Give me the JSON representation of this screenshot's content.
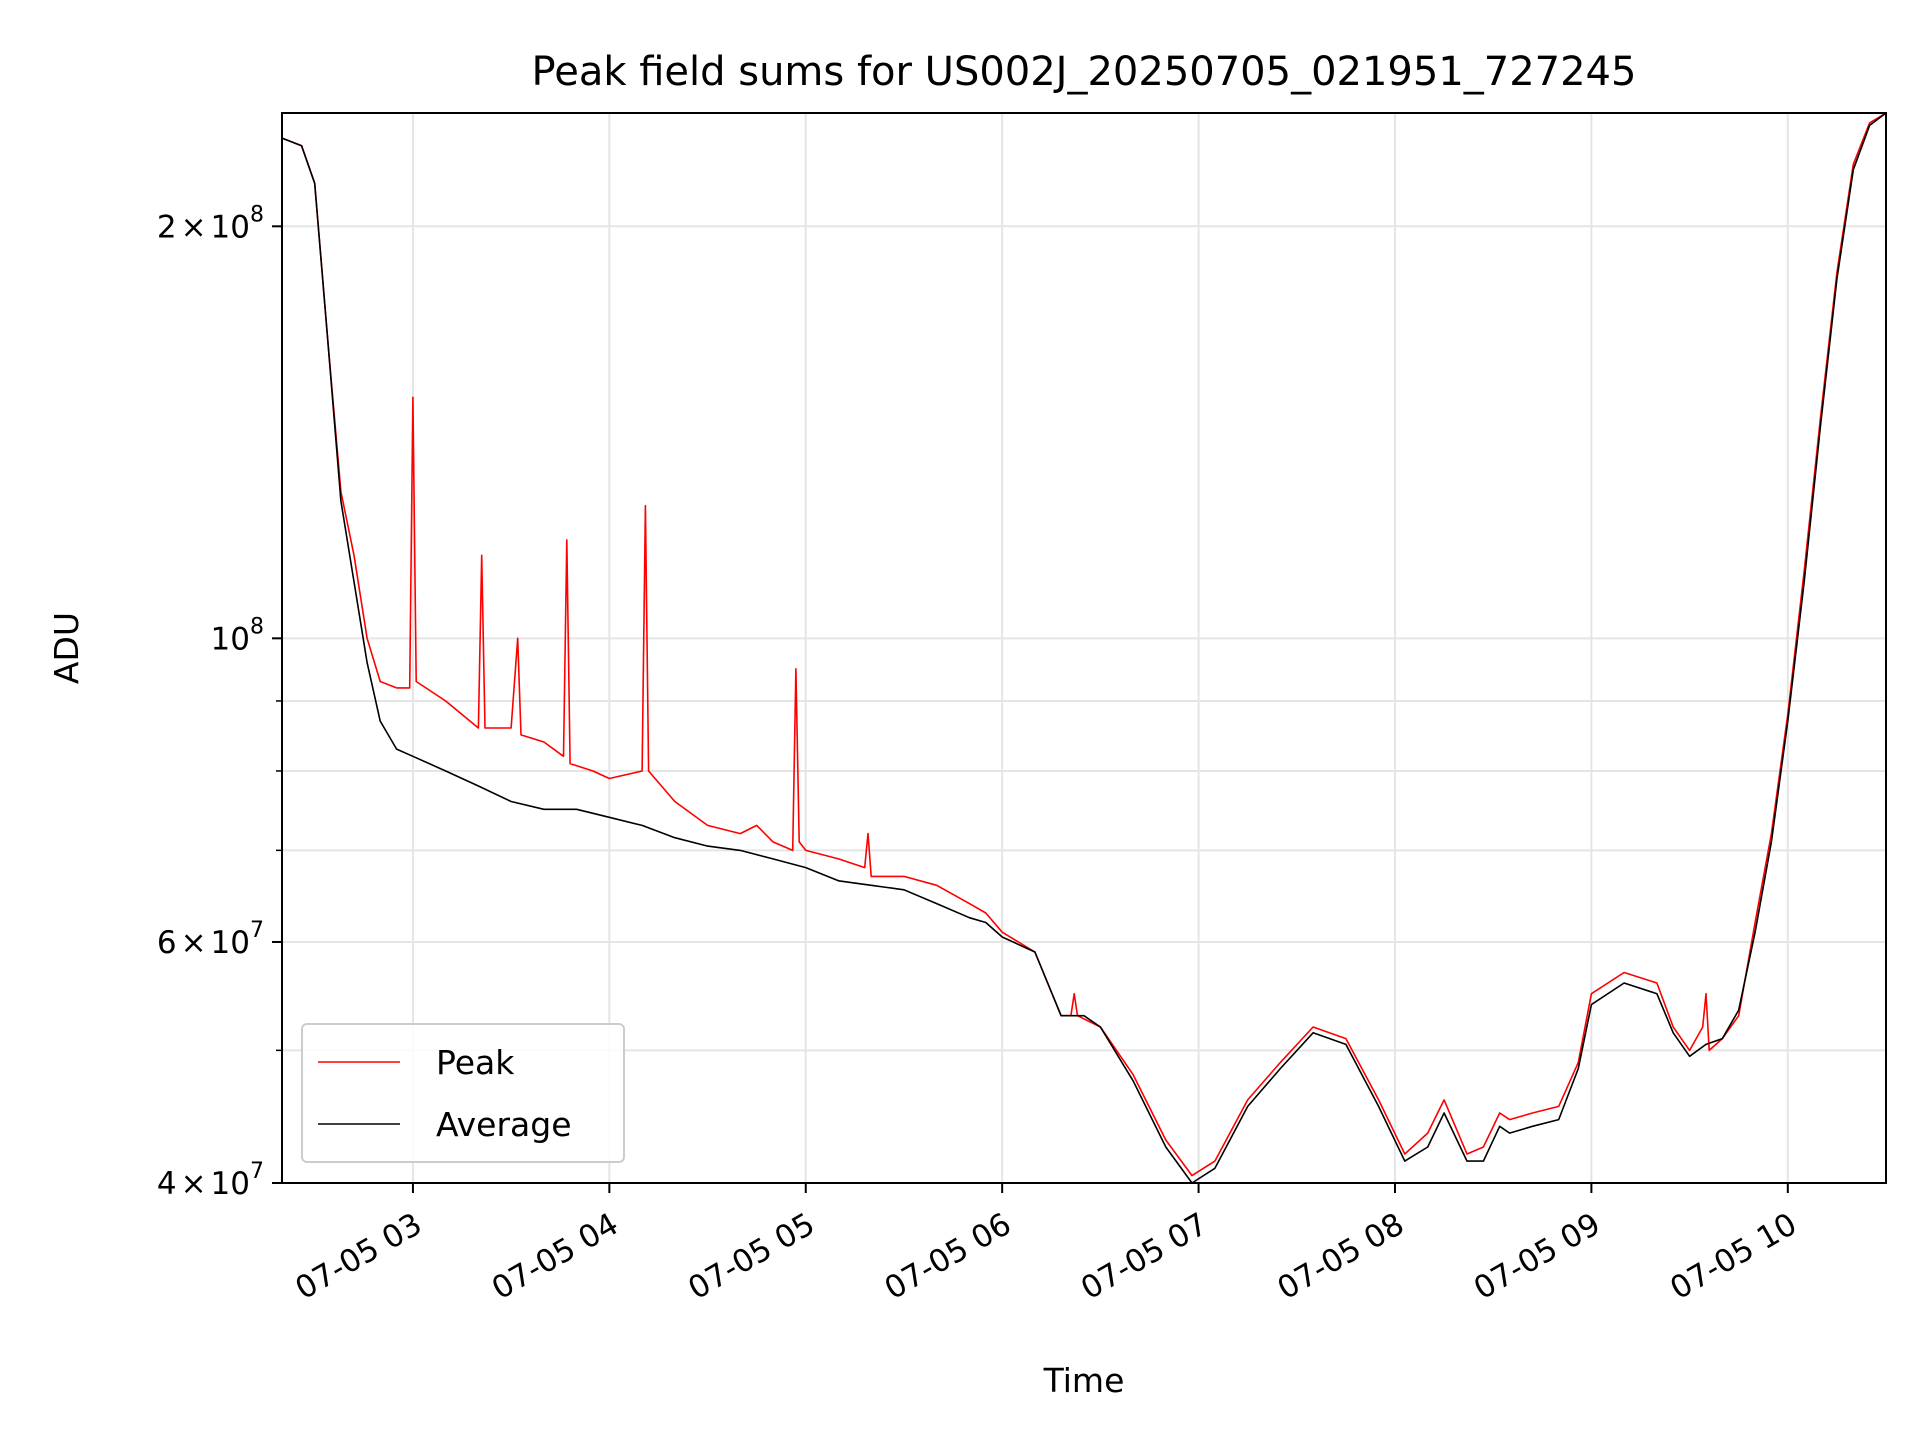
{
  "chart_data": {
    "type": "line",
    "title": "Peak field sums for US002J_20250705_021951_727245",
    "xlabel": "Time",
    "ylabel": "ADU",
    "yscale": "log",
    "grid": true,
    "legend_position": "lower-left",
    "xlim": [
      "2025-07-05 02:20",
      "2025-07-05 10:30"
    ],
    "ylim": [
      40000000,
      242000000
    ],
    "x_ticks": [
      {
        "value": "2025-07-05 03:00",
        "label": "07-05 03"
      },
      {
        "value": "2025-07-05 04:00",
        "label": "07-05 04"
      },
      {
        "value": "2025-07-05 05:00",
        "label": "07-05 05"
      },
      {
        "value": "2025-07-05 06:00",
        "label": "07-05 06"
      },
      {
        "value": "2025-07-05 07:00",
        "label": "07-05 07"
      },
      {
        "value": "2025-07-05 08:00",
        "label": "07-05 08"
      },
      {
        "value": "2025-07-05 09:00",
        "label": "07-05 09"
      },
      {
        "value": "2025-07-05 10:00",
        "label": "07-05 10"
      }
    ],
    "y_ticks": [
      {
        "value": 40000000,
        "base": "4",
        "exp": "7"
      },
      {
        "value": 60000000,
        "base": "6",
        "exp": "7"
      },
      {
        "value": 100000000,
        "base": "",
        "exp": "8"
      },
      {
        "value": 200000000,
        "base": "2",
        "exp": "8"
      }
    ],
    "y_minor_ticks": [
      50000000,
      70000000,
      80000000,
      90000000
    ],
    "series": [
      {
        "name": "Peak",
        "color": "#ff0000",
        "x": [
          "2025-07-05 02:20",
          "2025-07-05 02:26",
          "2025-07-05 02:30",
          "2025-07-05 02:34",
          "2025-07-05 02:38",
          "2025-07-05 02:42",
          "2025-07-05 02:46",
          "2025-07-05 02:50",
          "2025-07-05 02:55",
          "2025-07-05 02:59",
          "2025-07-05 03:00",
          "2025-07-05 03:01",
          "2025-07-05 03:10",
          "2025-07-05 03:20",
          "2025-07-05 03:21",
          "2025-07-05 03:22",
          "2025-07-05 03:30",
          "2025-07-05 03:32",
          "2025-07-05 03:33",
          "2025-07-05 03:40",
          "2025-07-05 03:46",
          "2025-07-05 03:47",
          "2025-07-05 03:48",
          "2025-07-05 03:55",
          "2025-07-05 04:00",
          "2025-07-05 04:10",
          "2025-07-05 04:11",
          "2025-07-05 04:12",
          "2025-07-05 04:20",
          "2025-07-05 04:30",
          "2025-07-05 04:40",
          "2025-07-05 04:45",
          "2025-07-05 04:50",
          "2025-07-05 04:56",
          "2025-07-05 04:57",
          "2025-07-05 04:58",
          "2025-07-05 05:00",
          "2025-07-05 05:10",
          "2025-07-05 05:18",
          "2025-07-05 05:19",
          "2025-07-05 05:20",
          "2025-07-05 05:30",
          "2025-07-05 05:40",
          "2025-07-05 05:50",
          "2025-07-05 05:55",
          "2025-07-05 06:00",
          "2025-07-05 06:10",
          "2025-07-05 06:18",
          "2025-07-05 06:21",
          "2025-07-05 06:22",
          "2025-07-05 06:23",
          "2025-07-05 06:30",
          "2025-07-05 06:40",
          "2025-07-05 06:50",
          "2025-07-05 06:58",
          "2025-07-05 07:05",
          "2025-07-05 07:15",
          "2025-07-05 07:25",
          "2025-07-05 07:35",
          "2025-07-05 07:45",
          "2025-07-05 07:55",
          "2025-07-05 08:03",
          "2025-07-05 08:10",
          "2025-07-05 08:15",
          "2025-07-05 08:22",
          "2025-07-05 08:27",
          "2025-07-05 08:32",
          "2025-07-05 08:35",
          "2025-07-05 08:42",
          "2025-07-05 08:50",
          "2025-07-05 08:56",
          "2025-07-05 09:00",
          "2025-07-05 09:10",
          "2025-07-05 09:20",
          "2025-07-05 09:25",
          "2025-07-05 09:30",
          "2025-07-05 09:34",
          "2025-07-05 09:35",
          "2025-07-05 09:36",
          "2025-07-05 09:40",
          "2025-07-05 09:45",
          "2025-07-05 09:50",
          "2025-07-05 09:55",
          "2025-07-05 10:00",
          "2025-07-05 10:05",
          "2025-07-05 10:10",
          "2025-07-05 10:15",
          "2025-07-05 10:20",
          "2025-07-05 10:25",
          "2025-07-05 10:30"
        ],
        "values": [
          232000000,
          229000000,
          215000000,
          165000000,
          128000000,
          115000000,
          100000000,
          93000000,
          92000000,
          92000000,
          150000000,
          93000000,
          90000000,
          86000000,
          115000000,
          86000000,
          86000000,
          100000000,
          85000000,
          84000000,
          82000000,
          118000000,
          81000000,
          80000000,
          79000000,
          80000000,
          125000000,
          80000000,
          76000000,
          73000000,
          72000000,
          73000000,
          71000000,
          70000000,
          95000000,
          71000000,
          70000000,
          69000000,
          68000000,
          72000000,
          67000000,
          67000000,
          66000000,
          64000000,
          63000000,
          61000000,
          59000000,
          53000000,
          53000000,
          55000000,
          53000000,
          52000000,
          48000000,
          43000000,
          40500000,
          41500000,
          46000000,
          49000000,
          52000000,
          51000000,
          46000000,
          42000000,
          43500000,
          46000000,
          42000000,
          42500000,
          45000000,
          44500000,
          45000000,
          45500000,
          49000000,
          55000000,
          57000000,
          56000000,
          52000000,
          50000000,
          52000000,
          55000000,
          50000000,
          51000000,
          53000000,
          62000000,
          72000000,
          88000000,
          112000000,
          145000000,
          185000000,
          222000000,
          238000000,
          242000000
        ]
      },
      {
        "name": "Average",
        "color": "#000000",
        "x": [
          "2025-07-05 02:20",
          "2025-07-05 02:26",
          "2025-07-05 02:30",
          "2025-07-05 02:34",
          "2025-07-05 02:38",
          "2025-07-05 02:42",
          "2025-07-05 02:46",
          "2025-07-05 02:50",
          "2025-07-05 02:55",
          "2025-07-05 03:00",
          "2025-07-05 03:10",
          "2025-07-05 03:20",
          "2025-07-05 03:30",
          "2025-07-05 03:40",
          "2025-07-05 03:50",
          "2025-07-05 04:00",
          "2025-07-05 04:10",
          "2025-07-05 04:20",
          "2025-07-05 04:30",
          "2025-07-05 04:40",
          "2025-07-05 04:50",
          "2025-07-05 05:00",
          "2025-07-05 05:10",
          "2025-07-05 05:20",
          "2025-07-05 05:30",
          "2025-07-05 05:40",
          "2025-07-05 05:50",
          "2025-07-05 05:55",
          "2025-07-05 06:00",
          "2025-07-05 06:10",
          "2025-07-05 06:18",
          "2025-07-05 06:25",
          "2025-07-05 06:30",
          "2025-07-05 06:40",
          "2025-07-05 06:50",
          "2025-07-05 06:58",
          "2025-07-05 07:05",
          "2025-07-05 07:15",
          "2025-07-05 07:25",
          "2025-07-05 07:35",
          "2025-07-05 07:45",
          "2025-07-05 07:55",
          "2025-07-05 08:03",
          "2025-07-05 08:10",
          "2025-07-05 08:15",
          "2025-07-05 08:22",
          "2025-07-05 08:27",
          "2025-07-05 08:32",
          "2025-07-05 08:35",
          "2025-07-05 08:42",
          "2025-07-05 08:50",
          "2025-07-05 08:56",
          "2025-07-05 09:00",
          "2025-07-05 09:10",
          "2025-07-05 09:20",
          "2025-07-05 09:25",
          "2025-07-05 09:30",
          "2025-07-05 09:35",
          "2025-07-05 09:40",
          "2025-07-05 09:45",
          "2025-07-05 09:50",
          "2025-07-05 09:55",
          "2025-07-05 10:00",
          "2025-07-05 10:05",
          "2025-07-05 10:10",
          "2025-07-05 10:15",
          "2025-07-05 10:20",
          "2025-07-05 10:25",
          "2025-07-05 10:30"
        ],
        "values": [
          232000000,
          229000000,
          215000000,
          165000000,
          126000000,
          110000000,
          96000000,
          87000000,
          83000000,
          82000000,
          80000000,
          78000000,
          76000000,
          75000000,
          75000000,
          74000000,
          73000000,
          71500000,
          70500000,
          70000000,
          69000000,
          68000000,
          66500000,
          66000000,
          65500000,
          64000000,
          62500000,
          62000000,
          60500000,
          59000000,
          53000000,
          53000000,
          52000000,
          47500000,
          42500000,
          40000000,
          41000000,
          45500000,
          48500000,
          51500000,
          50500000,
          45500000,
          41500000,
          42500000,
          45000000,
          41500000,
          41500000,
          44000000,
          43500000,
          44000000,
          44500000,
          48500000,
          54000000,
          56000000,
          55000000,
          51500000,
          49500000,
          50500000,
          51000000,
          53500000,
          61000000,
          71000000,
          87000000,
          110000000,
          143000000,
          183000000,
          220000000,
          237000000,
          242000000
        ]
      }
    ]
  }
}
